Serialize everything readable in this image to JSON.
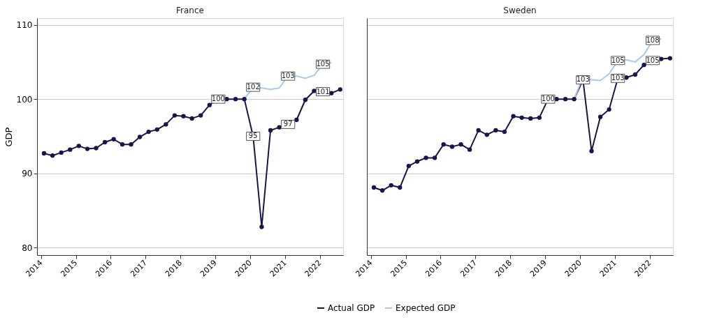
{
  "chart_data": [
    {
      "type": "line",
      "title": "France",
      "ylabel": "GDP",
      "x": [
        "2014-02",
        "2014-05",
        "2014-08",
        "2014-11",
        "2015-02",
        "2015-05",
        "2015-08",
        "2015-11",
        "2016-02",
        "2016-05",
        "2016-08",
        "2016-11",
        "2017-02",
        "2017-05",
        "2017-08",
        "2017-11",
        "2018-02",
        "2018-05",
        "2018-08",
        "2018-11",
        "2019-02",
        "2019-05",
        "2019-08",
        "2019-11",
        "2020-02",
        "2020-05",
        "2020-08",
        "2020-11",
        "2021-02",
        "2021-05",
        "2021-08",
        "2021-11",
        "2022-02",
        "2022-05",
        "2022-08"
      ],
      "series": [
        {
          "name": "Actual GDP",
          "color": "#16164d",
          "marker": "circle",
          "values": [
            92.7,
            92.4,
            92.8,
            93.2,
            93.7,
            93.3,
            93.4,
            94.2,
            94.6,
            93.9,
            93.9,
            94.9,
            95.6,
            95.9,
            96.6,
            97.8,
            97.7,
            97.4,
            97.8,
            99.2,
            100,
            100,
            100,
            100,
            95,
            82.8,
            95.8,
            96.2,
            96.6,
            97.2,
            99.9,
            101.1,
            101,
            100.8,
            101.3
          ]
        },
        {
          "name": "Expected GDP",
          "color": "#a6cbe6",
          "marker": "none",
          "x": [
            "2019-11",
            "2020-02",
            "2020-05",
            "2020-08",
            "2020-11",
            "2021-02",
            "2021-05",
            "2021-08",
            "2021-11",
            "2022-02",
            "2022-05"
          ],
          "values": [
            100,
            101.6,
            101.5,
            101.3,
            101.5,
            103.1,
            103.1,
            102.8,
            103.2,
            104.7,
            104.9
          ]
        }
      ],
      "xlim": [
        "2013-11-20",
        "2022-09-01"
      ],
      "xticks": [
        "2014",
        "2015",
        "2016",
        "2017",
        "2018",
        "2019",
        "2020",
        "2021",
        "2022"
      ],
      "ylim": [
        79,
        110.9
      ],
      "yticks": [
        80,
        90,
        100,
        110
      ],
      "grid": "y",
      "legend": "bottom",
      "annotations": [
        {
          "text": "100",
          "x": "2019-02",
          "y": 100
        },
        {
          "text": "95",
          "x": "2020-02",
          "y": 95
        },
        {
          "text": "97",
          "x": "2021-02",
          "y": 96.6
        },
        {
          "text": "101",
          "x": "2022-02",
          "y": 101
        },
        {
          "text": "102",
          "x": "2020-02",
          "y": 101.6
        },
        {
          "text": "103",
          "x": "2021-02",
          "y": 103.1
        },
        {
          "text": "105",
          "x": "2022-02",
          "y": 104.7
        }
      ]
    },
    {
      "type": "line",
      "title": "Sweden",
      "x": [
        "2014-02",
        "2014-05",
        "2014-08",
        "2014-11",
        "2015-02",
        "2015-05",
        "2015-08",
        "2015-11",
        "2016-02",
        "2016-05",
        "2016-08",
        "2016-11",
        "2017-02",
        "2017-05",
        "2017-08",
        "2017-11",
        "2018-02",
        "2018-05",
        "2018-08",
        "2018-11",
        "2019-02",
        "2019-05",
        "2019-08",
        "2019-11",
        "2020-02",
        "2020-05",
        "2020-08",
        "2020-11",
        "2021-02",
        "2021-05",
        "2021-08",
        "2021-11",
        "2022-02",
        "2022-05",
        "2022-08"
      ],
      "series": [
        {
          "name": "Actual GDP",
          "color": "#16164d",
          "marker": "circle",
          "values": [
            88.1,
            87.7,
            88.4,
            88.1,
            91.0,
            91.6,
            92.1,
            92.1,
            93.9,
            93.6,
            93.9,
            93.2,
            95.8,
            95.2,
            95.8,
            95.6,
            97.7,
            97.5,
            97.4,
            97.5,
            100,
            100,
            100,
            100,
            102.6,
            93.0,
            97.6,
            98.6,
            102.8,
            102.9,
            103.3,
            104.6,
            105.2,
            105.4,
            105.5
          ]
        },
        {
          "name": "Expected GDP",
          "color": "#a6cbe6",
          "marker": "none",
          "x": [
            "2019-11",
            "2020-02",
            "2020-05",
            "2020-08",
            "2020-11",
            "2021-02",
            "2021-05",
            "2021-08",
            "2021-11",
            "2022-02",
            "2022-05"
          ],
          "values": [
            100,
            103,
            102.6,
            102.5,
            103.4,
            105.2,
            105.3,
            105,
            106,
            107.9,
            108.1
          ]
        }
      ],
      "xlim": [
        "2013-11-20",
        "2022-09-01"
      ],
      "xticks": [
        "2014",
        "2015",
        "2016",
        "2017",
        "2018",
        "2019",
        "2020",
        "2021",
        "2022"
      ],
      "ylim": [
        79,
        110.9
      ],
      "yticks": [
        80,
        90,
        100,
        110
      ],
      "grid": "y",
      "legend": "bottom",
      "tick_labels": "x",
      "annotations": [
        {
          "text": "100",
          "x": "2019-02",
          "y": 100
        },
        {
          "text": "103",
          "x": "2020-02",
          "y": 102.6
        },
        {
          "text": "103",
          "x": "2021-02",
          "y": 102.8
        },
        {
          "text": "105",
          "x": "2022-02",
          "y": 105.2
        },
        {
          "text": "105",
          "x": "2021-02",
          "y": 105.2
        },
        {
          "text": "108",
          "x": "2022-02",
          "y": 107.9
        }
      ]
    }
  ]
}
